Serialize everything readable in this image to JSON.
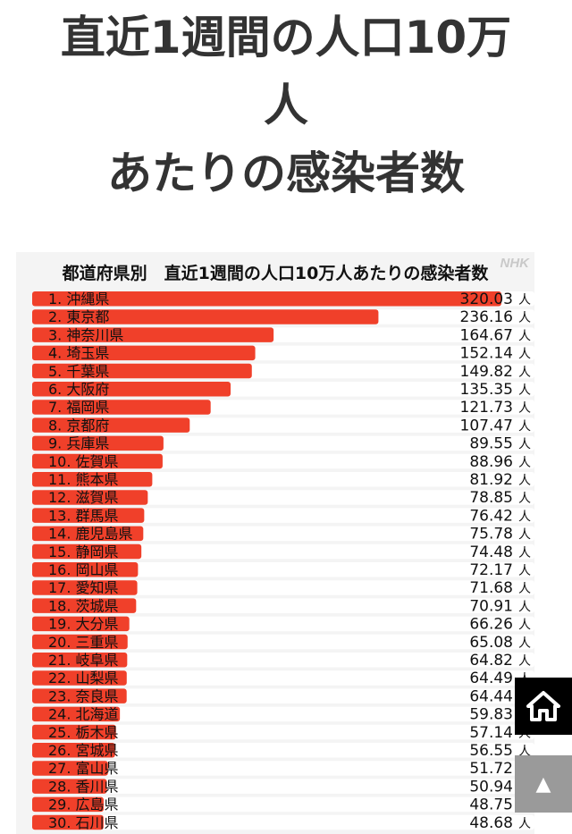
{
  "page": {
    "title_line1": "直近1週間の人口10万",
    "title_line2": "人",
    "title_line3": "あたりの感染者数"
  },
  "chart_data": {
    "type": "bar",
    "orientation": "horizontal",
    "title": "都道府県別　直近1週間の人口10万人あたりの感染者数",
    "watermark": "NHK",
    "unit": "人",
    "bar_color": "#f0402a",
    "xlim": [
      0,
      320.03
    ],
    "categories": [
      "1. 沖縄県",
      "2. 東京都",
      "3. 神奈川県",
      "4. 埼玉県",
      "5. 千葉県",
      "6. 大阪府",
      "7. 福岡県",
      "8. 京都府",
      "9. 兵庫県",
      "10. 佐賀県",
      "11. 熊本県",
      "12. 滋賀県",
      "13. 群馬県",
      "14. 鹿児島県",
      "15. 静岡県",
      "16. 岡山県",
      "17. 愛知県",
      "18. 茨城県",
      "19. 大分県",
      "20. 三重県",
      "21. 岐阜県",
      "22. 山梨県",
      "23. 奈良県",
      "24. 北海道",
      "25. 栃木県",
      "26. 宮城県",
      "27. 富山県",
      "28. 香川県",
      "29. 広島県",
      "30. 石川県"
    ],
    "values": [
      320.03,
      236.16,
      164.67,
      152.14,
      149.82,
      135.35,
      121.73,
      107.47,
      89.55,
      88.96,
      81.92,
      78.85,
      76.42,
      75.78,
      74.48,
      72.17,
      71.68,
      70.91,
      66.26,
      65.08,
      64.82,
      64.49,
      64.44,
      59.83,
      57.14,
      56.55,
      51.72,
      50.94,
      48.75,
      48.68
    ],
    "value_labels": [
      "320.03",
      "236.16",
      "164.67",
      "152.14",
      "149.82",
      "135.35",
      "121.73",
      "107.47",
      "89.55",
      "88.96",
      "81.92",
      "78.85",
      "76.42",
      "75.78",
      "74.48",
      "72.17",
      "71.68",
      "70.91",
      "66.26",
      "65.08",
      "64.82",
      "64.49",
      "64.44",
      "59.83",
      "57.14",
      "56.55",
      "51.72",
      "50.94",
      "48.75",
      "48.68"
    ]
  },
  "buttons": {
    "top_label": "▲"
  },
  "icons": {
    "home": "home-icon",
    "top": "arrow-up-icon"
  }
}
